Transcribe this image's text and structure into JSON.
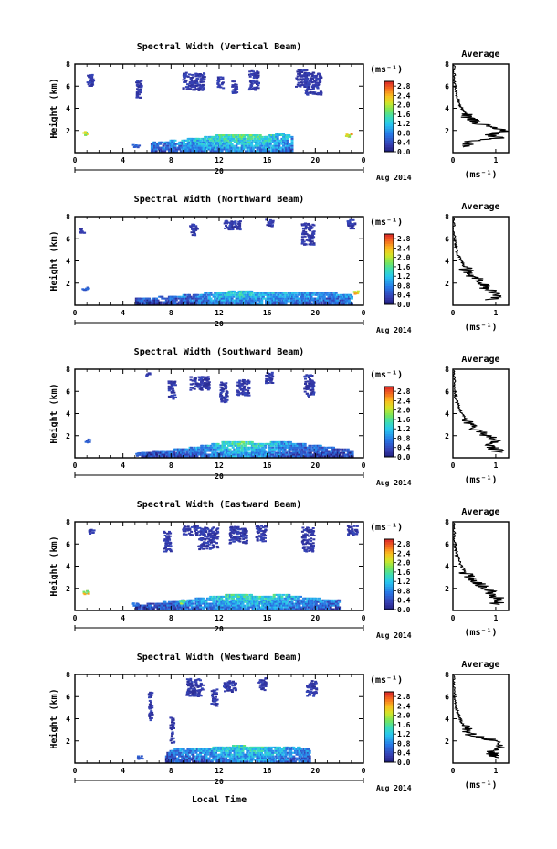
{
  "figure": {
    "xlabel": "Local Time",
    "date_label": "Aug 2014",
    "day_label": "20",
    "colorbar_unit": "(ms⁻¹)",
    "avg_title": "Average",
    "avg_unit": "(ms⁻¹)"
  },
  "chart_data": [
    {
      "type": "heatmap",
      "title": "Spectral Width (Vertical Beam)",
      "ylabel": "Height (km)",
      "xlim": [
        0,
        24
      ],
      "ylim": [
        0,
        8
      ],
      "xticks": [
        "0",
        "4",
        "8",
        "12",
        "16",
        "20",
        "0"
      ],
      "yticks": [
        "2",
        "4",
        "6",
        "8"
      ],
      "colorbar": {
        "ticks": [
          "0.0",
          "0.4",
          "0.8",
          "1.2",
          "1.6",
          "2.0",
          "2.4",
          "2.8"
        ],
        "range": [
          0,
          3.0
        ]
      },
      "average": {
        "xlim": [
          0,
          1.3
        ],
        "xticks": [
          "0",
          "1"
        ],
        "ylim": [
          0,
          8
        ],
        "yticks": [
          "2",
          "4",
          "6",
          "8"
        ],
        "profile": [
          [
            0.3,
            0.5
          ],
          [
            0.4,
            1.0
          ],
          [
            1.1,
            1.3
          ],
          [
            0.9,
            1.6
          ],
          [
            1.2,
            2.0
          ],
          [
            0.8,
            2.4
          ],
          [
            0.5,
            2.8
          ],
          [
            0.35,
            3.2
          ],
          [
            0.3,
            3.6
          ],
          [
            0.2,
            4.0
          ],
          [
            0.15,
            4.5
          ],
          [
            0.1,
            5.0
          ],
          [
            0.07,
            5.5
          ],
          [
            0.05,
            6.0
          ],
          [
            0.03,
            7.0
          ],
          [
            0.02,
            8.0
          ]
        ]
      },
      "upper_blobs": [
        [
          1.2,
          6.6,
          0.5,
          1.0
        ],
        [
          5.2,
          5.8,
          0.5,
          1.6
        ],
        [
          9.8,
          6.5,
          1.8,
          1.6
        ],
        [
          13.2,
          6.0,
          0.4,
          1.2
        ],
        [
          14.8,
          6.6,
          0.8,
          1.8
        ],
        [
          18.8,
          6.8,
          1.0,
          1.6
        ],
        [
          19.7,
          6.3,
          1.4,
          2.0
        ],
        [
          12.0,
          6.4,
          0.5,
          1.0
        ]
      ],
      "lower_band": [
        [
          6.3,
          1.0,
          0.7
        ],
        [
          8.0,
          1.2,
          0.9
        ],
        [
          10.0,
          1.4,
          1.2
        ],
        [
          12.0,
          1.7,
          1.5
        ],
        [
          14.0,
          1.8,
          1.6
        ],
        [
          15.8,
          1.6,
          1.5
        ],
        [
          17.0,
          1.9,
          1.3
        ],
        [
          18.0,
          1.6,
          1.0
        ]
      ],
      "spots": [
        [
          0.8,
          1.8,
          2.2
        ],
        [
          22.7,
          1.6,
          2.4
        ],
        [
          5.0,
          0.7,
          0.6
        ]
      ]
    },
    {
      "type": "heatmap",
      "title": "Spectral Width (Northward Beam)",
      "ylabel": "Height (km)",
      "xlim": [
        0,
        24
      ],
      "ylim": [
        0,
        8
      ],
      "xticks": [
        "0",
        "4",
        "8",
        "12",
        "16",
        "20",
        "0"
      ],
      "yticks": [
        "2",
        "4",
        "6",
        "8"
      ],
      "colorbar": {
        "ticks": [
          "0.0",
          "0.4",
          "0.8",
          "1.2",
          "1.6",
          "2.0",
          "2.4",
          "2.8"
        ],
        "range": [
          0,
          3.0
        ]
      },
      "average": {
        "xlim": [
          0,
          1.3
        ],
        "xticks": [
          "0",
          "1"
        ],
        "ylim": [
          0,
          8
        ],
        "yticks": [
          "2",
          "4",
          "6",
          "8"
        ],
        "profile": [
          [
            0.9,
            0.5
          ],
          [
            1.0,
            1.0
          ],
          [
            0.8,
            1.5
          ],
          [
            0.7,
            2.0
          ],
          [
            0.5,
            2.5
          ],
          [
            0.35,
            3.0
          ],
          [
            0.25,
            3.5
          ],
          [
            0.2,
            4.0
          ],
          [
            0.12,
            4.5
          ],
          [
            0.08,
            5.0
          ],
          [
            0.06,
            5.5
          ],
          [
            0.04,
            6.0
          ],
          [
            0.02,
            7.0
          ],
          [
            0.02,
            8.0
          ]
        ]
      },
      "upper_blobs": [
        [
          9.8,
          6.9,
          0.6,
          1.0
        ],
        [
          13.0,
          7.3,
          1.4,
          0.8
        ],
        [
          16.1,
          7.5,
          0.6,
          0.6
        ],
        [
          19.3,
          6.5,
          1.0,
          2.0
        ],
        [
          22.9,
          7.4,
          0.6,
          0.8
        ],
        [
          0.5,
          6.8,
          0.4,
          0.4
        ]
      ],
      "lower_band": [
        [
          5.0,
          0.7,
          0.5
        ],
        [
          7.5,
          0.9,
          0.6
        ],
        [
          10.0,
          1.1,
          0.8
        ],
        [
          12.0,
          1.3,
          1.2
        ],
        [
          14.0,
          1.4,
          1.4
        ],
        [
          16.0,
          1.2,
          1.2
        ],
        [
          18.0,
          1.3,
          1.1
        ],
        [
          21.5,
          1.2,
          0.8
        ],
        [
          23.0,
          1.0,
          1.0
        ]
      ],
      "spots": [
        [
          23.3,
          1.2,
          2.5
        ],
        [
          0.8,
          1.6,
          0.6
        ]
      ]
    },
    {
      "type": "heatmap",
      "title": "Spectral Width (Southward Beam)",
      "ylabel": "Height (km)",
      "xlim": [
        0,
        24
      ],
      "ylim": [
        0,
        8
      ],
      "xticks": [
        "0",
        "4",
        "8",
        "12",
        "16",
        "20",
        "0"
      ],
      "yticks": [
        "2",
        "4",
        "6",
        "8"
      ],
      "colorbar": {
        "ticks": [
          "0.0",
          "0.4",
          "0.8",
          "1.2",
          "1.6",
          "2.0",
          "2.4",
          "2.8"
        ],
        "range": [
          0,
          3.0
        ]
      },
      "average": {
        "xlim": [
          0,
          1.3
        ],
        "xticks": [
          "0",
          "1"
        ],
        "ylim": [
          0,
          8
        ],
        "yticks": [
          "2",
          "4",
          "6",
          "8"
        ],
        "profile": [
          [
            1.1,
            0.5
          ],
          [
            0.9,
            1.0
          ],
          [
            1.0,
            1.5
          ],
          [
            0.8,
            2.0
          ],
          [
            0.6,
            2.5
          ],
          [
            0.4,
            3.0
          ],
          [
            0.3,
            3.5
          ],
          [
            0.2,
            4.0
          ],
          [
            0.15,
            4.5
          ],
          [
            0.1,
            5.0
          ],
          [
            0.06,
            5.5
          ],
          [
            0.05,
            6.0
          ],
          [
            0.03,
            7.0
          ],
          [
            0.02,
            8.0
          ]
        ]
      },
      "upper_blobs": [
        [
          8.0,
          6.2,
          0.6,
          1.6
        ],
        [
          10.3,
          6.8,
          1.6,
          1.2
        ],
        [
          12.3,
          6.0,
          0.6,
          1.8
        ],
        [
          13.9,
          6.4,
          1.0,
          1.4
        ],
        [
          16.1,
          7.3,
          0.6,
          1.0
        ],
        [
          19.4,
          6.6,
          0.8,
          2.0
        ],
        [
          6.0,
          7.6,
          0.3,
          0.3
        ]
      ],
      "lower_band": [
        [
          5.5,
          0.6,
          0.4
        ],
        [
          8.5,
          0.9,
          0.7
        ],
        [
          10.5,
          1.2,
          1.0
        ],
        [
          12.2,
          1.5,
          1.4
        ],
        [
          13.8,
          1.6,
          1.6
        ],
        [
          15.5,
          1.4,
          1.4
        ],
        [
          17.0,
          1.6,
          1.0
        ],
        [
          19.5,
          1.3,
          0.7
        ],
        [
          23.0,
          0.8,
          0.5
        ]
      ],
      "spots": [
        [
          1.0,
          1.6,
          0.6
        ],
        [
          5.2,
          0.4,
          0.7
        ]
      ]
    },
    {
      "type": "heatmap",
      "title": "Spectral Width (Eastward Beam)",
      "ylabel": "Height (km)",
      "xlim": [
        0,
        24
      ],
      "ylim": [
        0,
        8
      ],
      "xticks": [
        "0",
        "4",
        "8",
        "12",
        "16",
        "20",
        "0"
      ],
      "yticks": [
        "2",
        "4",
        "6",
        "8"
      ],
      "colorbar": {
        "ticks": [
          "0.0",
          "0.4",
          "0.8",
          "1.2",
          "1.6",
          "2.0",
          "2.4",
          "2.8"
        ],
        "range": [
          0,
          3.0
        ]
      },
      "average": {
        "xlim": [
          0,
          1.3
        ],
        "xticks": [
          "0",
          "1"
        ],
        "ylim": [
          0,
          8
        ],
        "yticks": [
          "2",
          "4",
          "6",
          "8"
        ],
        "profile": [
          [
            1.0,
            0.5
          ],
          [
            1.1,
            1.0
          ],
          [
            0.9,
            1.5
          ],
          [
            0.8,
            2.0
          ],
          [
            0.55,
            2.5
          ],
          [
            0.35,
            3.0
          ],
          [
            0.28,
            3.5
          ],
          [
            0.2,
            4.0
          ],
          [
            0.14,
            4.5
          ],
          [
            0.1,
            5.0
          ],
          [
            0.07,
            5.5
          ],
          [
            0.05,
            6.0
          ],
          [
            0.03,
            7.0
          ],
          [
            0.02,
            8.0
          ]
        ]
      },
      "upper_blobs": [
        [
          7.6,
          6.3,
          0.6,
          1.8
        ],
        [
          9.5,
          7.3,
          1.2,
          0.8
        ],
        [
          11.0,
          6.6,
          1.6,
          2.0
        ],
        [
          13.5,
          6.9,
          1.4,
          1.6
        ],
        [
          15.4,
          7.0,
          0.8,
          1.4
        ],
        [
          19.3,
          6.5,
          1.0,
          2.2
        ],
        [
          23.0,
          7.3,
          0.8,
          0.8
        ],
        [
          1.3,
          7.2,
          0.4,
          0.4
        ]
      ],
      "lower_band": [
        [
          5.0,
          0.6,
          0.4
        ],
        [
          7.5,
          0.9,
          0.7
        ],
        [
          9.5,
          1.1,
          1.0
        ],
        [
          11.5,
          1.4,
          1.3
        ],
        [
          13.5,
          1.6,
          1.5
        ],
        [
          15.5,
          1.4,
          1.4
        ],
        [
          17.0,
          1.6,
          1.3
        ],
        [
          19.0,
          1.3,
          1.0
        ],
        [
          22.0,
          1.0,
          0.7
        ]
      ],
      "spots": [
        [
          0.8,
          1.7,
          2.3
        ],
        [
          8.8,
          0.8,
          2.0
        ],
        [
          5.0,
          0.6,
          0.8
        ]
      ]
    },
    {
      "type": "heatmap",
      "title": "Spectral Width (Westward Beam)",
      "ylabel": "Height (km)",
      "xlim": [
        0,
        24
      ],
      "ylim": [
        0,
        8
      ],
      "xticks": [
        "0",
        "4",
        "8",
        "12",
        "16",
        "20",
        "0"
      ],
      "yticks": [
        "2",
        "4",
        "6",
        "8"
      ],
      "colorbar": {
        "ticks": [
          "0.0",
          "0.4",
          "0.8",
          "1.2",
          "1.6",
          "2.0",
          "2.4",
          "2.8"
        ],
        "range": [
          0,
          3.0
        ]
      },
      "average": {
        "xlim": [
          0,
          1.3
        ],
        "xticks": [
          "0",
          "1"
        ],
        "ylim": [
          0,
          8
        ],
        "yticks": [
          "2",
          "4",
          "6",
          "8"
        ],
        "profile": [
          [
            1.0,
            0.5
          ],
          [
            0.9,
            1.0
          ],
          [
            1.1,
            1.5
          ],
          [
            0.95,
            2.0
          ],
          [
            0.7,
            2.3
          ],
          [
            0.4,
            2.6
          ],
          [
            0.3,
            3.0
          ],
          [
            0.22,
            3.5
          ],
          [
            0.17,
            4.0
          ],
          [
            0.12,
            4.5
          ],
          [
            0.08,
            5.0
          ],
          [
            0.05,
            5.5
          ],
          [
            0.04,
            6.0
          ],
          [
            0.02,
            7.0
          ],
          [
            0.02,
            8.0
          ]
        ]
      },
      "upper_blobs": [
        [
          6.2,
          5.2,
          0.3,
          2.6
        ],
        [
          9.9,
          6.9,
          1.4,
          1.6
        ],
        [
          11.5,
          6.0,
          0.5,
          1.6
        ],
        [
          12.8,
          7.0,
          1.0,
          1.0
        ],
        [
          15.5,
          7.2,
          0.6,
          1.2
        ],
        [
          19.6,
          6.8,
          0.8,
          1.4
        ],
        [
          8.0,
          3.0,
          0.3,
          2.4
        ]
      ],
      "lower_band": [
        [
          7.5,
          1.3,
          0.6
        ],
        [
          9.5,
          1.4,
          0.9
        ],
        [
          11.5,
          1.5,
          1.2
        ],
        [
          13.5,
          1.7,
          1.4
        ],
        [
          15.5,
          1.5,
          1.4
        ],
        [
          17.5,
          1.6,
          1.1
        ],
        [
          19.5,
          1.4,
          0.8
        ]
      ],
      "spots": [
        [
          5.3,
          0.6,
          0.6
        ]
      ]
    }
  ]
}
